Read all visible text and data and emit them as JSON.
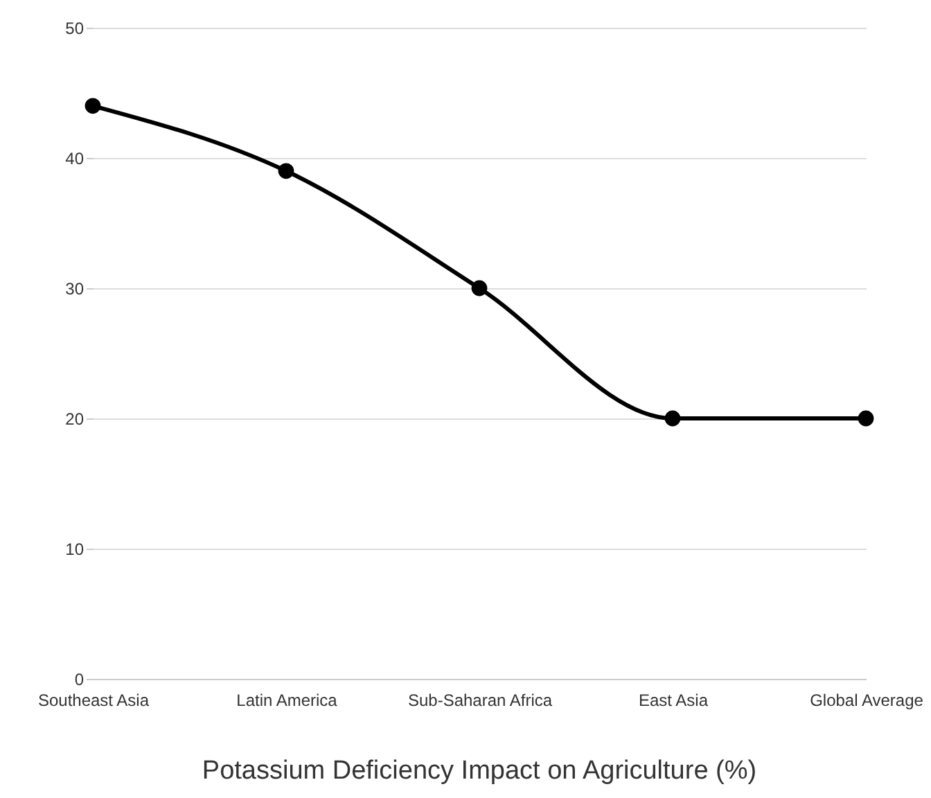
{
  "chart_data": {
    "type": "line",
    "title": "Potassium Deficiency Impact on Agriculture (%)",
    "categories": [
      "Southeast Asia",
      "Latin America",
      "Sub-Saharan Africa",
      "East Asia",
      "Global Average"
    ],
    "series": [
      {
        "color": "#000000",
        "values": [
          44,
          39,
          30,
          20,
          20
        ]
      }
    ],
    "ylim": [
      0,
      50
    ],
    "yticks": [
      0,
      10,
      20,
      30,
      40,
      50
    ],
    "grid": "y",
    "marker": "circle",
    "line_style": "solid"
  }
}
